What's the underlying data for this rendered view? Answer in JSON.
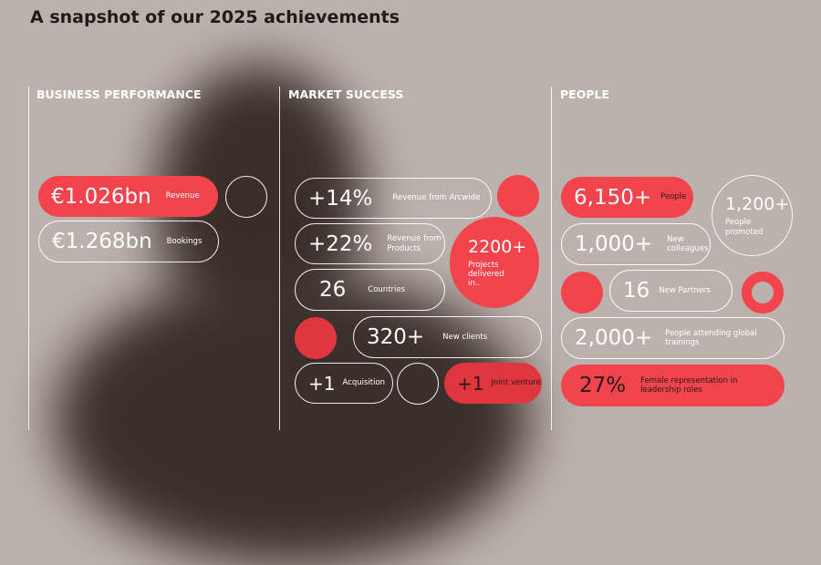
{
  "title": "A snapshot of our 2025 achievements",
  "sections": [
    {
      "heading": "BUSINESS PERFORMANCE",
      "items": [
        {
          "value": "€1.026bn",
          "label": "Revenue"
        },
        {
          "value": "€1.268bn",
          "label": "Bookings"
        }
      ]
    },
    {
      "heading": "MARKET SUCCESS",
      "items": [
        {
          "value": "+14%",
          "label": "Revenue from Arcwide"
        },
        {
          "value": "+22%",
          "label": "Revenue from Products"
        },
        {
          "value": "2200+",
          "label": "Projects delivered in.."
        },
        {
          "value": "26",
          "label": "Countries"
        },
        {
          "value": "320+",
          "label": "New clients"
        },
        {
          "value": "+1",
          "label": "Acquisition"
        },
        {
          "value": "+1",
          "label": "Joint venture"
        }
      ]
    },
    {
      "heading": "PEOPLE",
      "items": [
        {
          "value": "6,150+",
          "label": "People"
        },
        {
          "value": "1,200+",
          "label": "People promoted"
        },
        {
          "value": "1,000+",
          "label": "New colleagues"
        },
        {
          "value": "16",
          "label": "New Partners"
        },
        {
          "value": "2,000+",
          "label": "People attending global trainings"
        },
        {
          "value": "27%",
          "label": "Female representation in leadership roles"
        }
      ]
    }
  ]
}
